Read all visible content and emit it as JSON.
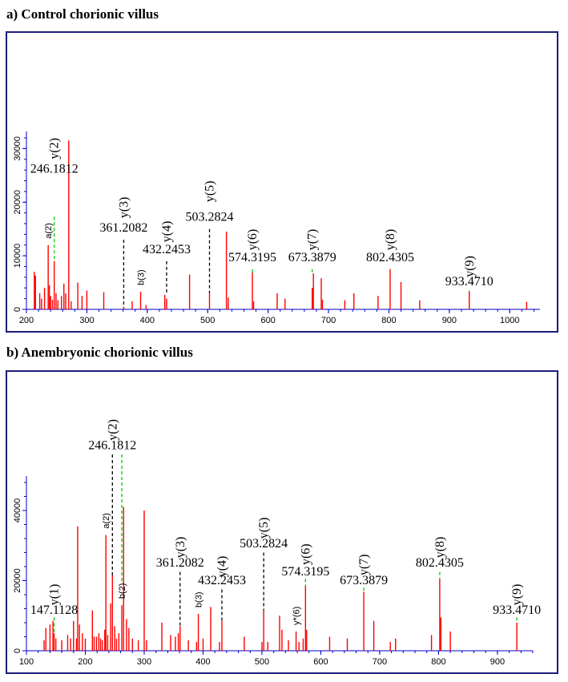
{
  "panels": [
    {
      "title": "a)  Control chorionic villus"
    },
    {
      "title": "b) Anembryonic chorionic villus"
    }
  ],
  "chart_data": [
    {
      "type": "bar",
      "title": "a)  Control chorionic villus",
      "xlim": [
        200,
        1050
      ],
      "ylim": [
        0,
        32000
      ],
      "x_ticks": [
        200,
        300,
        400,
        500,
        600,
        700,
        800,
        900,
        1000
      ],
      "y_ticks": [
        0,
        10000,
        20000,
        30000
      ],
      "peak_color": "#ff0000",
      "guide_color_black": "#000000",
      "guide_color_green": "#00cc00",
      "peaks": [
        [
          213,
          7000
        ],
        [
          215,
          6300
        ],
        [
          222,
          3000
        ],
        [
          225,
          2000
        ],
        [
          230,
          4000
        ],
        [
          236,
          12000
        ],
        [
          238,
          4500
        ],
        [
          240,
          2500
        ],
        [
          243,
          1800
        ],
        [
          246,
          9000
        ],
        [
          249,
          3000
        ],
        [
          252,
          1700
        ],
        [
          258,
          2500
        ],
        [
          262,
          4800
        ],
        [
          265,
          3000
        ],
        [
          270,
          31500
        ],
        [
          274,
          1500
        ],
        [
          285,
          5000
        ],
        [
          292,
          2500
        ],
        [
          300,
          3500
        ],
        [
          328,
          3200
        ],
        [
          361,
          500
        ],
        [
          375,
          1500
        ],
        [
          389,
          3300
        ],
        [
          398,
          800
        ],
        [
          432,
          2000
        ],
        [
          429,
          2700
        ],
        [
          470,
          6500
        ],
        [
          503,
          3000
        ],
        [
          531,
          14500
        ],
        [
          534,
          2200
        ],
        [
          574,
          6900
        ],
        [
          576,
          1500
        ],
        [
          615,
          3000
        ],
        [
          628,
          2000
        ],
        [
          673,
          4000
        ],
        [
          675,
          6700
        ],
        [
          688,
          5800
        ],
        [
          690,
          1800
        ],
        [
          727,
          1700
        ],
        [
          742,
          3000
        ],
        [
          782,
          2500
        ],
        [
          802,
          7500
        ],
        [
          820,
          5100
        ],
        [
          851,
          1700
        ],
        [
          933,
          3300
        ],
        [
          1028,
          1400
        ]
      ],
      "annotations": [
        {
          "ion": "y(2)",
          "mz": "246.1812",
          "x": 246,
          "y_label": 25500,
          "y_ion": 30000,
          "guide": "green",
          "guide_top": 17300,
          "guide_bottom": 9000
        },
        {
          "ion": "y(3)",
          "mz": "361.2082",
          "x": 361,
          "y_label": 14500,
          "y_ion": 19000,
          "guide": "black",
          "guide_top": 13000,
          "guide_bottom": 500
        },
        {
          "ion": "y(4)",
          "mz": "432.2453",
          "x": 432,
          "y_label": 10500,
          "y_ion": 14500,
          "guide": "black",
          "guide_top": 9000,
          "guide_bottom": 2700
        },
        {
          "ion": "y(5)",
          "mz": "503.2824",
          "x": 503,
          "y_label": 16500,
          "y_ion": 22000,
          "guide": "black",
          "guide_top": 15000,
          "guide_bottom": 3000
        },
        {
          "ion": "y(6)",
          "mz": "574.3195",
          "x": 574,
          "y_label": 9000,
          "y_ion": 13000,
          "guide": "green",
          "guide_top": 7500,
          "guide_bottom": 6900
        },
        {
          "ion": "y(7)",
          "mz": "673.3879",
          "x": 673,
          "y_label": 9000,
          "y_ion": 13000,
          "guide": "green",
          "guide_top": 7500,
          "guide_bottom": 6700
        },
        {
          "ion": "y(8)",
          "mz": "802.4305",
          "x": 802,
          "y_label": 9000,
          "y_ion": 13000,
          "guide": "green",
          "guide_top": 7500,
          "guide_bottom": 7500
        },
        {
          "ion": "y(9)",
          "mz": "933.4710",
          "x": 933,
          "y_label": 4500,
          "y_ion": 8000,
          "guide": "green",
          "guide_top": 3500,
          "guide_bottom": 3300
        }
      ],
      "small_annotations": [
        {
          "text": "a(2)",
          "x": 236,
          "y": 12000,
          "guide": "green"
        },
        {
          "text": "b(3)",
          "x": 389,
          "y": 3300,
          "guide": "green"
        }
      ]
    },
    {
      "type": "bar",
      "title": "b) Anembryonic chorionic villus",
      "xlim": [
        100,
        960
      ],
      "ylim": [
        0,
        48000
      ],
      "x_ticks": [
        100,
        200,
        300,
        400,
        500,
        600,
        700,
        800,
        900
      ],
      "y_ticks": [
        0,
        20000,
        40000
      ],
      "peak_color": "#ff0000",
      "guide_color_black": "#000000",
      "guide_color_green": "#00cc00",
      "peaks": [
        [
          130,
          3000
        ],
        [
          133,
          6500
        ],
        [
          140,
          7500
        ],
        [
          145,
          8500
        ],
        [
          147,
          5000
        ],
        [
          150,
          3500
        ],
        [
          160,
          3000
        ],
        [
          170,
          4500
        ],
        [
          175,
          3500
        ],
        [
          180,
          8500
        ],
        [
          185,
          3500
        ],
        [
          187,
          35500
        ],
        [
          190,
          7500
        ],
        [
          195,
          5000
        ],
        [
          200,
          3500
        ],
        [
          212,
          11500
        ],
        [
          215,
          4000
        ],
        [
          219,
          4000
        ],
        [
          223,
          5000
        ],
        [
          226,
          3500
        ],
        [
          229,
          3000
        ],
        [
          233,
          6000
        ],
        [
          235,
          33000
        ],
        [
          238,
          4500
        ],
        [
          243,
          13500
        ],
        [
          246,
          21500
        ],
        [
          250,
          7000
        ],
        [
          253,
          3500
        ],
        [
          257,
          5000
        ],
        [
          262,
          13000
        ],
        [
          265,
          41000
        ],
        [
          270,
          9000
        ],
        [
          274,
          6500
        ],
        [
          280,
          3500
        ],
        [
          290,
          3000
        ],
        [
          300,
          40000
        ],
        [
          304,
          3000
        ],
        [
          330,
          8000
        ],
        [
          345,
          4500
        ],
        [
          353,
          4000
        ],
        [
          358,
          5000
        ],
        [
          361,
          7000
        ],
        [
          375,
          3000
        ],
        [
          389,
          2500
        ],
        [
          392,
          10500
        ],
        [
          400,
          3500
        ],
        [
          413,
          12500
        ],
        [
          428,
          2500
        ],
        [
          432,
          8500
        ],
        [
          470,
          4000
        ],
        [
          500,
          2500
        ],
        [
          503,
          11500
        ],
        [
          510,
          2500
        ],
        [
          530,
          10000
        ],
        [
          534,
          6000
        ],
        [
          545,
          3000
        ],
        [
          558,
          5500
        ],
        [
          563,
          2500
        ],
        [
          570,
          3500
        ],
        [
          574,
          18500
        ],
        [
          576,
          6000
        ],
        [
          615,
          4000
        ],
        [
          645,
          3500
        ],
        [
          673,
          16800
        ],
        [
          690,
          8500
        ],
        [
          718,
          2500
        ],
        [
          727,
          3500
        ],
        [
          788,
          4500
        ],
        [
          802,
          20500
        ],
        [
          804,
          9500
        ],
        [
          820,
          5500
        ],
        [
          933,
          8000
        ]
      ],
      "annotations": [
        {
          "ion": "y(1)",
          "mz": "147.1128",
          "x": 147,
          "y_label": 10500,
          "y_ion": 16000,
          "guide": "green",
          "guide_top": 9500,
          "guide_bottom": 5000
        },
        {
          "ion": "y(2)",
          "mz": "246.1812",
          "x": 246,
          "y_label": 57500,
          "y_ion": 63000,
          "guide": "black",
          "guide_top": 56000,
          "guide_bottom": 21500
        },
        {
          "ion": "y(3)",
          "mz": "361.2082",
          "x": 361,
          "y_label": 24000,
          "y_ion": 29500,
          "guide": "black",
          "guide_top": 22500,
          "guide_bottom": 7000
        },
        {
          "ion": "y(4)",
          "mz": "432.2453",
          "x": 432,
          "y_label": 19000,
          "y_ion": 24000,
          "guide": "black",
          "guide_top": 17500,
          "guide_bottom": 8500
        },
        {
          "ion": "y(5)",
          "mz": "503.2824",
          "x": 503,
          "y_label": 29500,
          "y_ion": 35000,
          "guide": "black",
          "guide_top": 28000,
          "guide_bottom": 11500
        },
        {
          "ion": "y(6)",
          "mz": "574.3195",
          "x": 574,
          "y_label": 21500,
          "y_ion": 27500,
          "guide": "green",
          "guide_top": 20500,
          "guide_bottom": 18500
        },
        {
          "ion": "y(7)",
          "mz": "673.3879",
          "x": 673,
          "y_label": 19000,
          "y_ion": 24500,
          "guide": "green",
          "guide_top": 18000,
          "guide_bottom": 16800
        },
        {
          "ion": "y(8)",
          "mz": "802.4305",
          "x": 802,
          "y_label": 24000,
          "y_ion": 29500,
          "guide": "green",
          "guide_top": 22500,
          "guide_bottom": 20500
        },
        {
          "ion": "y(9)",
          "mz": "933.4710",
          "x": 933,
          "y_label": 10500,
          "y_ion": 16000,
          "guide": "green",
          "guide_top": 9500,
          "guide_bottom": 8000
        }
      ],
      "small_annotations": [
        {
          "text": "a(2)",
          "x": 235,
          "y": 33000,
          "guide": "green"
        },
        {
          "text": "b(2)",
          "x": 262,
          "y": 13000,
          "guide": "green",
          "guide_top": 56000
        },
        {
          "text": "b(3)",
          "x": 392,
          "y": 10500,
          "guide": "green"
        },
        {
          "text": "y*(6)",
          "x": 558,
          "y": 5500,
          "guide": "green"
        }
      ]
    }
  ]
}
